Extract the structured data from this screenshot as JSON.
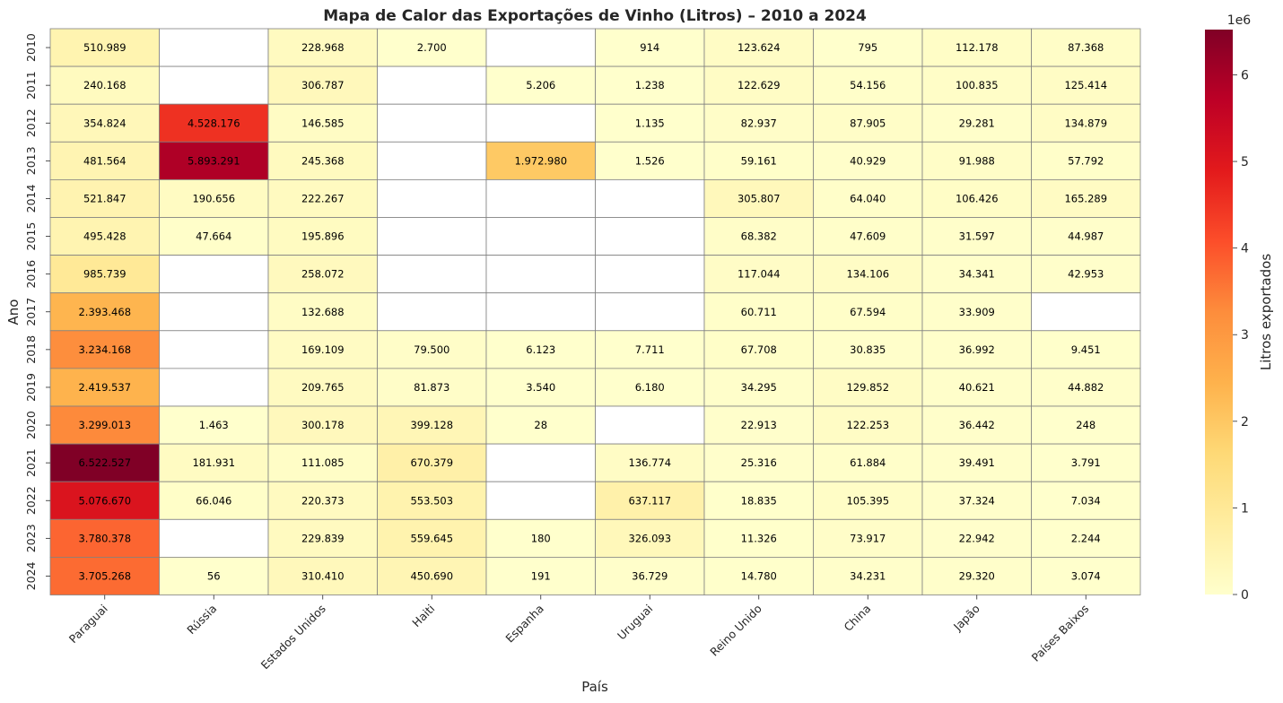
{
  "chart_data": {
    "type": "heatmap",
    "title": "Mapa de Calor das Exportações de Vinho (Litros) – 2010 a 2024",
    "xlabel": "País",
    "ylabel": "Ano",
    "colorbar_label": "Litros exportados",
    "colorbar_offset": "1e6",
    "colorbar_ticks": [
      "0",
      "1",
      "2",
      "3",
      "4",
      "5",
      "6"
    ],
    "colorbar_range": [
      0,
      6522527
    ],
    "colormap": "YlOrRd",
    "cell_border_color": "#808080",
    "columns": [
      "Paraguai",
      "Rússia",
      "Estados Unidos",
      "Haiti",
      "Espanha",
      "Uruguai",
      "Reino Unido",
      "China",
      "Japão",
      "Países Baixos"
    ],
    "rows": [
      "2010",
      "2011",
      "2012",
      "2013",
      "2014",
      "2015",
      "2016",
      "2017",
      "2018",
      "2019",
      "2020",
      "2021",
      "2022",
      "2023",
      "2024"
    ],
    "values": [
      [
        510989,
        null,
        228968,
        2700,
        null,
        914,
        123624,
        795,
        112178,
        87368
      ],
      [
        240168,
        null,
        306787,
        null,
        5206,
        1238,
        122629,
        54156,
        100835,
        125414
      ],
      [
        354824,
        4528176,
        146585,
        null,
        null,
        1135,
        82937,
        87905,
        29281,
        134879
      ],
      [
        481564,
        5893291,
        245368,
        null,
        1972980,
        1526,
        59161,
        40929,
        91988,
        57792
      ],
      [
        521847,
        190656,
        222267,
        null,
        null,
        null,
        305807,
        64040,
        106426,
        165289
      ],
      [
        495428,
        47664,
        195896,
        null,
        null,
        null,
        68382,
        47609,
        31597,
        44987
      ],
      [
        985739,
        null,
        258072,
        null,
        null,
        null,
        117044,
        134106,
        34341,
        42953
      ],
      [
        2393468,
        null,
        132688,
        null,
        null,
        null,
        60711,
        67594,
        33909,
        null
      ],
      [
        3234168,
        null,
        169109,
        79500,
        6123,
        7711,
        67708,
        30835,
        36992,
        9451
      ],
      [
        2419537,
        null,
        209765,
        81873,
        3540,
        6180,
        34295,
        129852,
        40621,
        44882
      ],
      [
        3299013,
        1463,
        300178,
        399128,
        28,
        null,
        22913,
        122253,
        36442,
        248
      ],
      [
        6522527,
        181931,
        111085,
        670379,
        null,
        136774,
        25316,
        61884,
        39491,
        3791
      ],
      [
        5076670,
        66046,
        220373,
        553503,
        null,
        637117,
        18835,
        105395,
        37324,
        7034
      ],
      [
        3780378,
        null,
        229839,
        559645,
        180,
        326093,
        11326,
        73917,
        22942,
        2244
      ],
      [
        3705268,
        56,
        310410,
        450690,
        191,
        36729,
        14780,
        34231,
        29320,
        3074
      ]
    ]
  }
}
